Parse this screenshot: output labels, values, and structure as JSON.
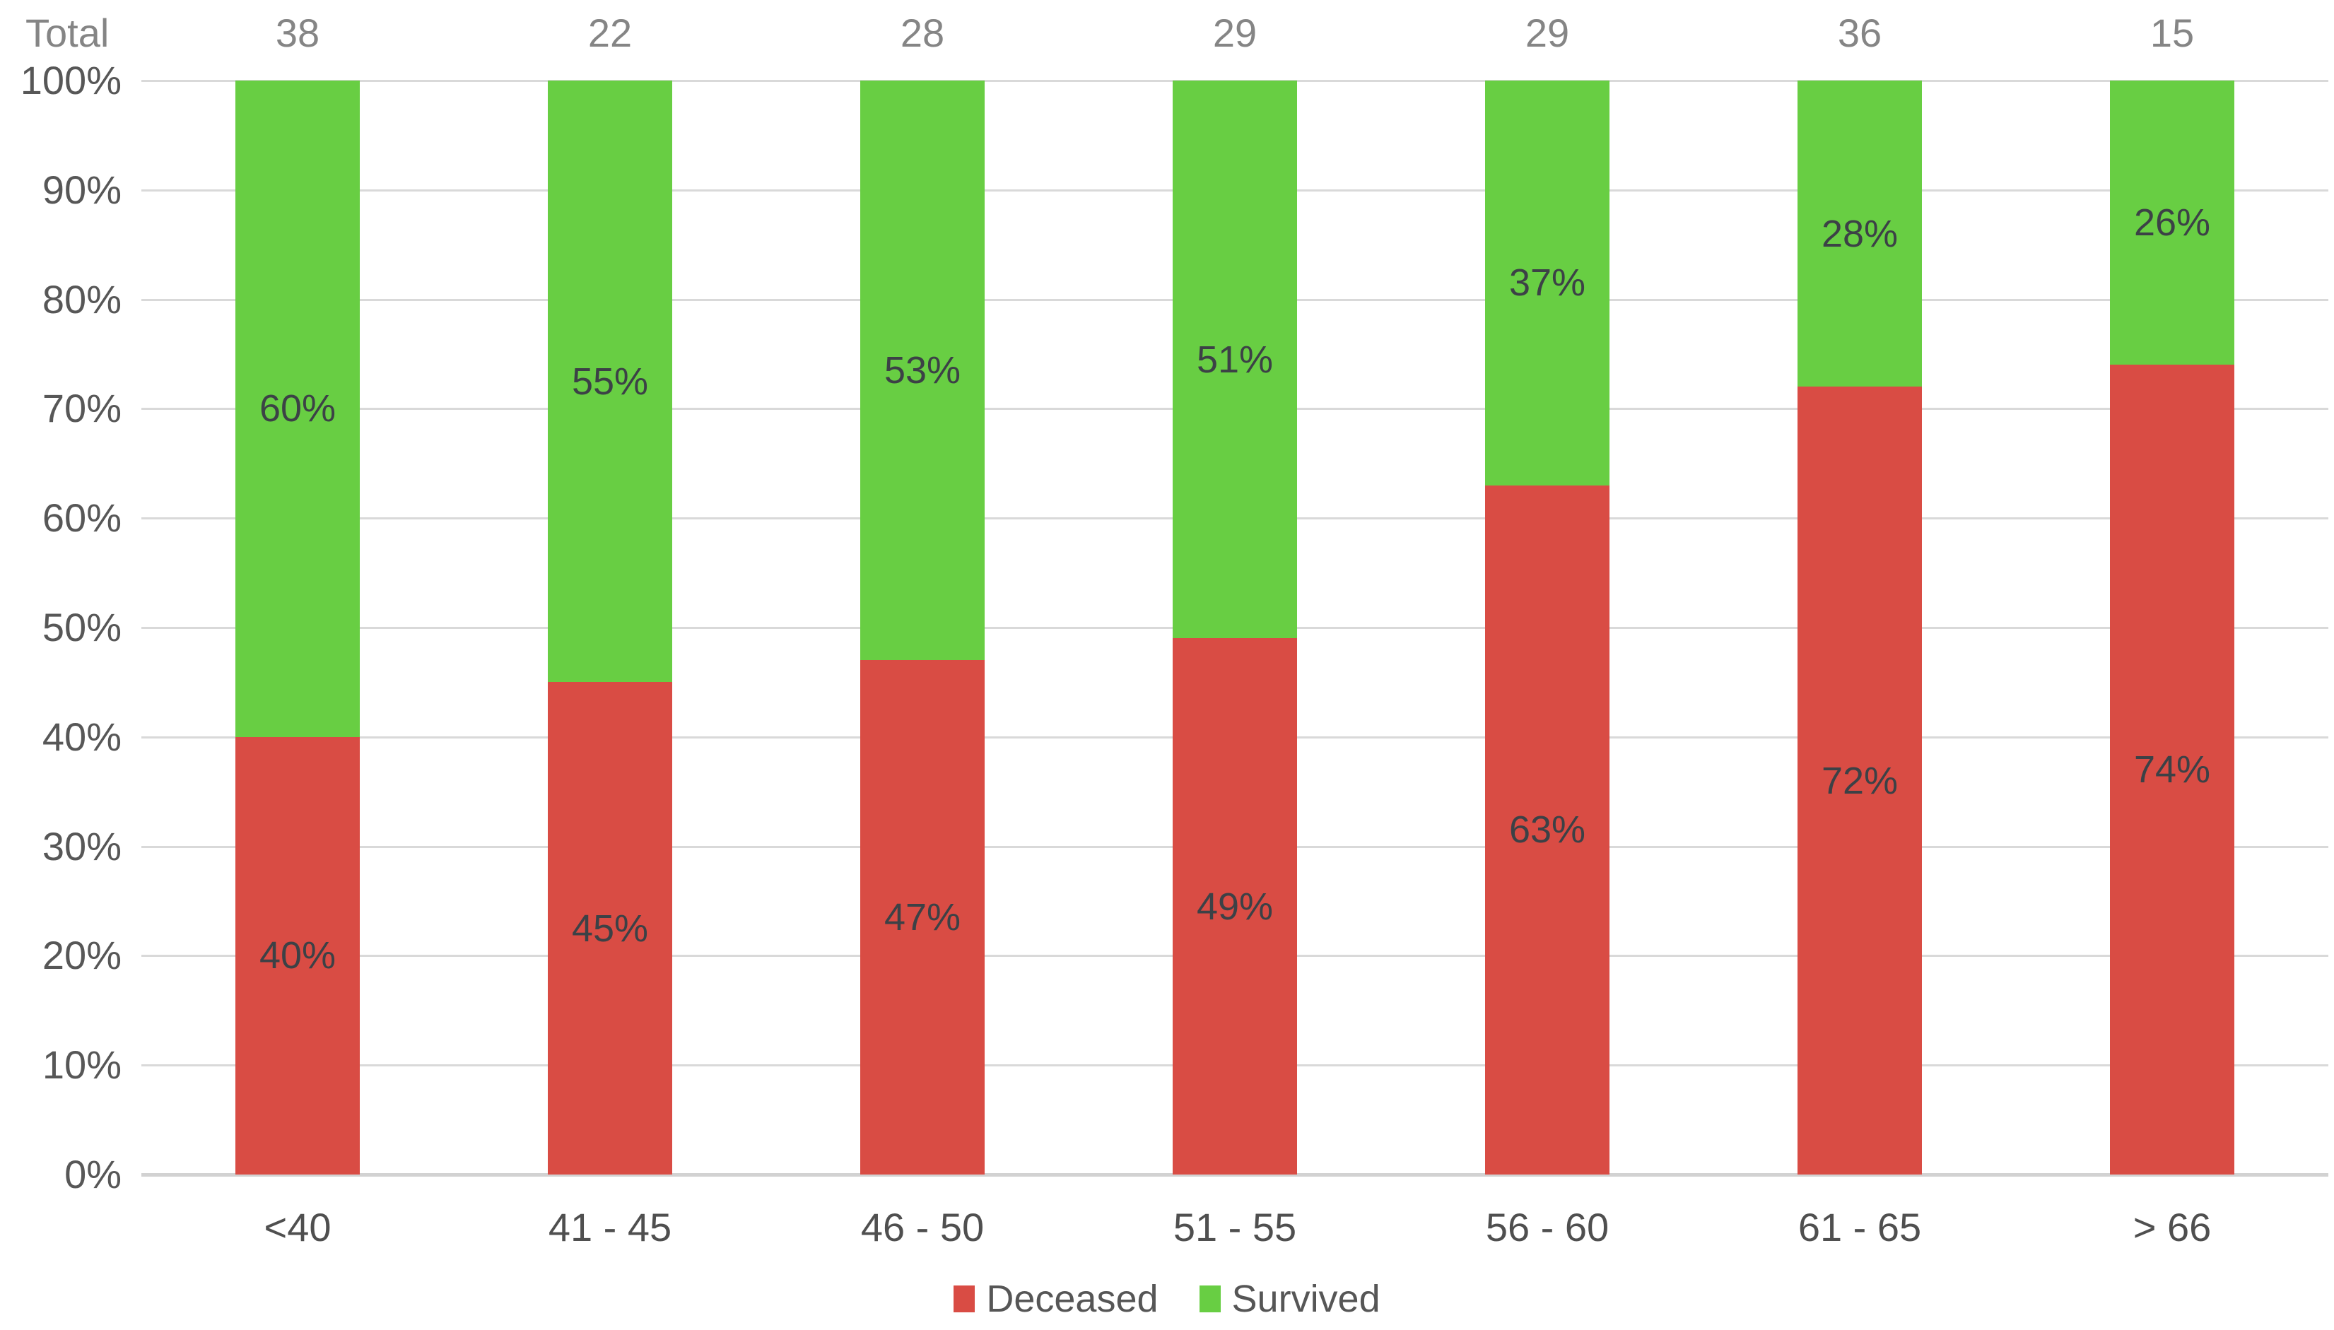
{
  "chart_data": {
    "type": "bar",
    "stacked": true,
    "percent_stacked": true,
    "total_label": "Total",
    "totals": [
      "38",
      "22",
      "28",
      "29",
      "29",
      "36",
      "15"
    ],
    "categories": [
      "<40",
      "41 - 45",
      "46 - 50",
      "51 - 55",
      "56 - 60",
      "61 - 65",
      "> 66"
    ],
    "series": [
      {
        "name": "Deceased",
        "color": "#d94c44",
        "values": [
          40,
          45,
          47,
          49,
          63,
          72,
          74
        ],
        "labels": [
          "40%",
          "45%",
          "47%",
          "49%",
          "63%",
          "72%",
          "74%"
        ]
      },
      {
        "name": "Survived",
        "color": "#68ce43",
        "values": [
          60,
          55,
          53,
          51,
          37,
          28,
          26
        ],
        "labels": [
          "60%",
          "55%",
          "53%",
          "51%",
          "37%",
          "28%",
          "26%"
        ]
      }
    ],
    "y_axis": {
      "ticks": [
        "100%",
        "90%",
        "80%",
        "70%",
        "60%",
        "50%",
        "40%",
        "30%",
        "20%",
        "10%",
        "0%"
      ],
      "min": 0,
      "max": 100,
      "grid": true
    },
    "legend": {
      "position": "bottom",
      "entries": [
        {
          "label": "Deceased",
          "color": "#d94c44"
        },
        {
          "label": "Survived",
          "color": "#68ce43"
        }
      ]
    },
    "colors": {
      "gridline": "#d9d9d9",
      "axis_line": "#d2d2d2",
      "axis_text": "#575757",
      "totals_text": "#858585",
      "data_label_text": "#3c4146"
    }
  }
}
